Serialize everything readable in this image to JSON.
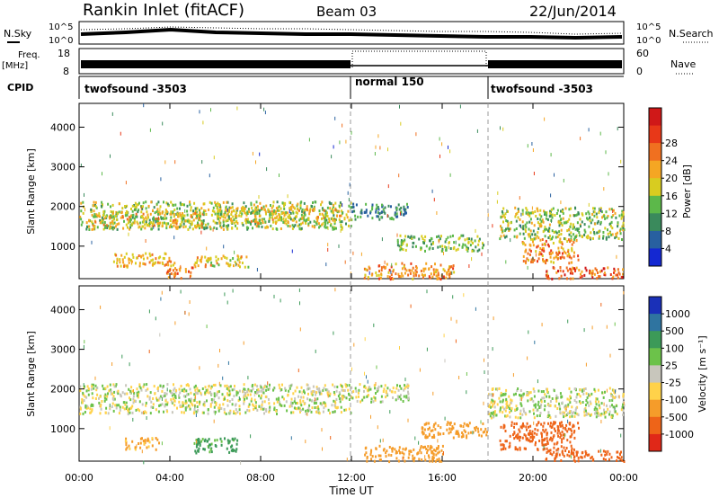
{
  "header": {
    "title": "Rankin Inlet (fitACF)",
    "beam": "Beam 03",
    "date": "22/Jun/2014"
  },
  "noise_panel": {
    "left_label": "N.Sky",
    "right_label": "N.Search",
    "left_ticks": [
      "10^5",
      "10^0"
    ],
    "right_ticks": [
      "10^5",
      "10^0"
    ]
  },
  "freq_panel": {
    "left_label_1": "Freq.",
    "left_label_2": "[MHz]",
    "right_label": "Nave",
    "left_ticks": [
      "18",
      "8"
    ],
    "right_ticks": [
      "60",
      "0"
    ]
  },
  "cpid_panel": {
    "label": "CPID",
    "segments": [
      {
        "name": "twofsound -3503",
        "start": 0,
        "end": 12
      },
      {
        "name": "normal 150",
        "start": 12,
        "end": 18
      },
      {
        "name": "twofsound -3503",
        "start": 18,
        "end": 24
      }
    ]
  },
  "axes": {
    "ylabel": "Slant Range [km]",
    "xlabel": "Time UT",
    "x_ticks": [
      "00:00",
      "04:00",
      "08:00",
      "12:00",
      "16:00",
      "20:00",
      "00:00"
    ],
    "y_ticks": [
      "1000",
      "2000",
      "3000",
      "4000"
    ]
  },
  "power_colorbar": {
    "label": "Power [dB]",
    "ticks": [
      "4",
      "8",
      "12",
      "16",
      "20",
      "24",
      "28"
    ],
    "colors": [
      "#1428d2",
      "#2860a0",
      "#3a8a5c",
      "#5cb84a",
      "#d8cc20",
      "#f5a623",
      "#f07020",
      "#e83818",
      "#d01818"
    ]
  },
  "velocity_colorbar": {
    "label": "Velocity [m s⁻¹]",
    "ticks": [
      "1000",
      "500",
      "100",
      "25",
      "-25",
      "-100",
      "-500",
      "-1000"
    ],
    "colors": [
      "#1a30b8",
      "#2f74a0",
      "#3c9a58",
      "#6cc24a",
      "#c8c6bc",
      "#ffd24a",
      "#f59c2a",
      "#ee6418",
      "#e02818"
    ]
  },
  "chart_data": [
    {
      "type": "heatmap",
      "name": "power",
      "x_unit": "hours UT",
      "y_unit": "km",
      "xlim": [
        0,
        24
      ],
      "ylim": [
        180,
        4600
      ],
      "regions": [
        {
          "t0": 0.0,
          "t1": 12.0,
          "r0": 1450,
          "r1": 2150,
          "value": 14
        },
        {
          "t0": 0.5,
          "t1": 5.5,
          "r0": 1500,
          "r1": 1900,
          "value": 18
        },
        {
          "t0": 6.0,
          "t1": 11.5,
          "r0": 1600,
          "r1": 2000,
          "value": 17
        },
        {
          "t0": 1.5,
          "t1": 4.2,
          "r0": 500,
          "r1": 850,
          "value": 20
        },
        {
          "t0": 3.8,
          "t1": 5.0,
          "r0": 200,
          "r1": 500,
          "value": 24
        },
        {
          "t0": 5.0,
          "t1": 7.5,
          "r0": 500,
          "r1": 800,
          "value": 18
        },
        {
          "t0": 12.0,
          "t1": 14.5,
          "r0": 1700,
          "r1": 2100,
          "value": 8
        },
        {
          "t0": 12.5,
          "t1": 16.5,
          "r0": 200,
          "r1": 600,
          "value": 22
        },
        {
          "t0": 14.0,
          "t1": 17.8,
          "r0": 900,
          "r1": 1300,
          "value": 12
        },
        {
          "t0": 18.5,
          "t1": 24.0,
          "r0": 1200,
          "r1": 2000,
          "value": 14
        },
        {
          "t0": 19.5,
          "t1": 22.0,
          "r0": 600,
          "r1": 1200,
          "value": 22
        },
        {
          "t0": 20.5,
          "t1": 24.0,
          "r0": 200,
          "r1": 500,
          "value": 26
        }
      ]
    },
    {
      "type": "heatmap",
      "name": "velocity",
      "x_unit": "hours UT",
      "y_unit": "km",
      "xlim": [
        0,
        24
      ],
      "ylim": [
        180,
        4600
      ],
      "regions": [
        {
          "t0": 0.0,
          "t1": 12.0,
          "r0": 1400,
          "r1": 2150,
          "value": 0
        },
        {
          "t0": 12.0,
          "t1": 14.5,
          "r0": 1700,
          "r1": 2150,
          "value": 0
        },
        {
          "t0": 18.0,
          "t1": 24.0,
          "r0": 1300,
          "r1": 2050,
          "value": 0
        },
        {
          "t0": 2.0,
          "t1": 3.5,
          "r0": 500,
          "r1": 800,
          "value": -150
        },
        {
          "t0": 5.0,
          "t1": 7.0,
          "r0": 400,
          "r1": 800,
          "value": 150
        },
        {
          "t0": 12.5,
          "t1": 16.0,
          "r0": 200,
          "r1": 600,
          "value": -300
        },
        {
          "t0": 15.0,
          "t1": 18.0,
          "r0": 800,
          "r1": 1200,
          "value": -400
        },
        {
          "t0": 18.5,
          "t1": 22.0,
          "r0": 500,
          "r1": 1200,
          "value": -600
        },
        {
          "t0": 20.5,
          "t1": 24.0,
          "r0": 200,
          "r1": 500,
          "value": -600
        }
      ]
    }
  ]
}
